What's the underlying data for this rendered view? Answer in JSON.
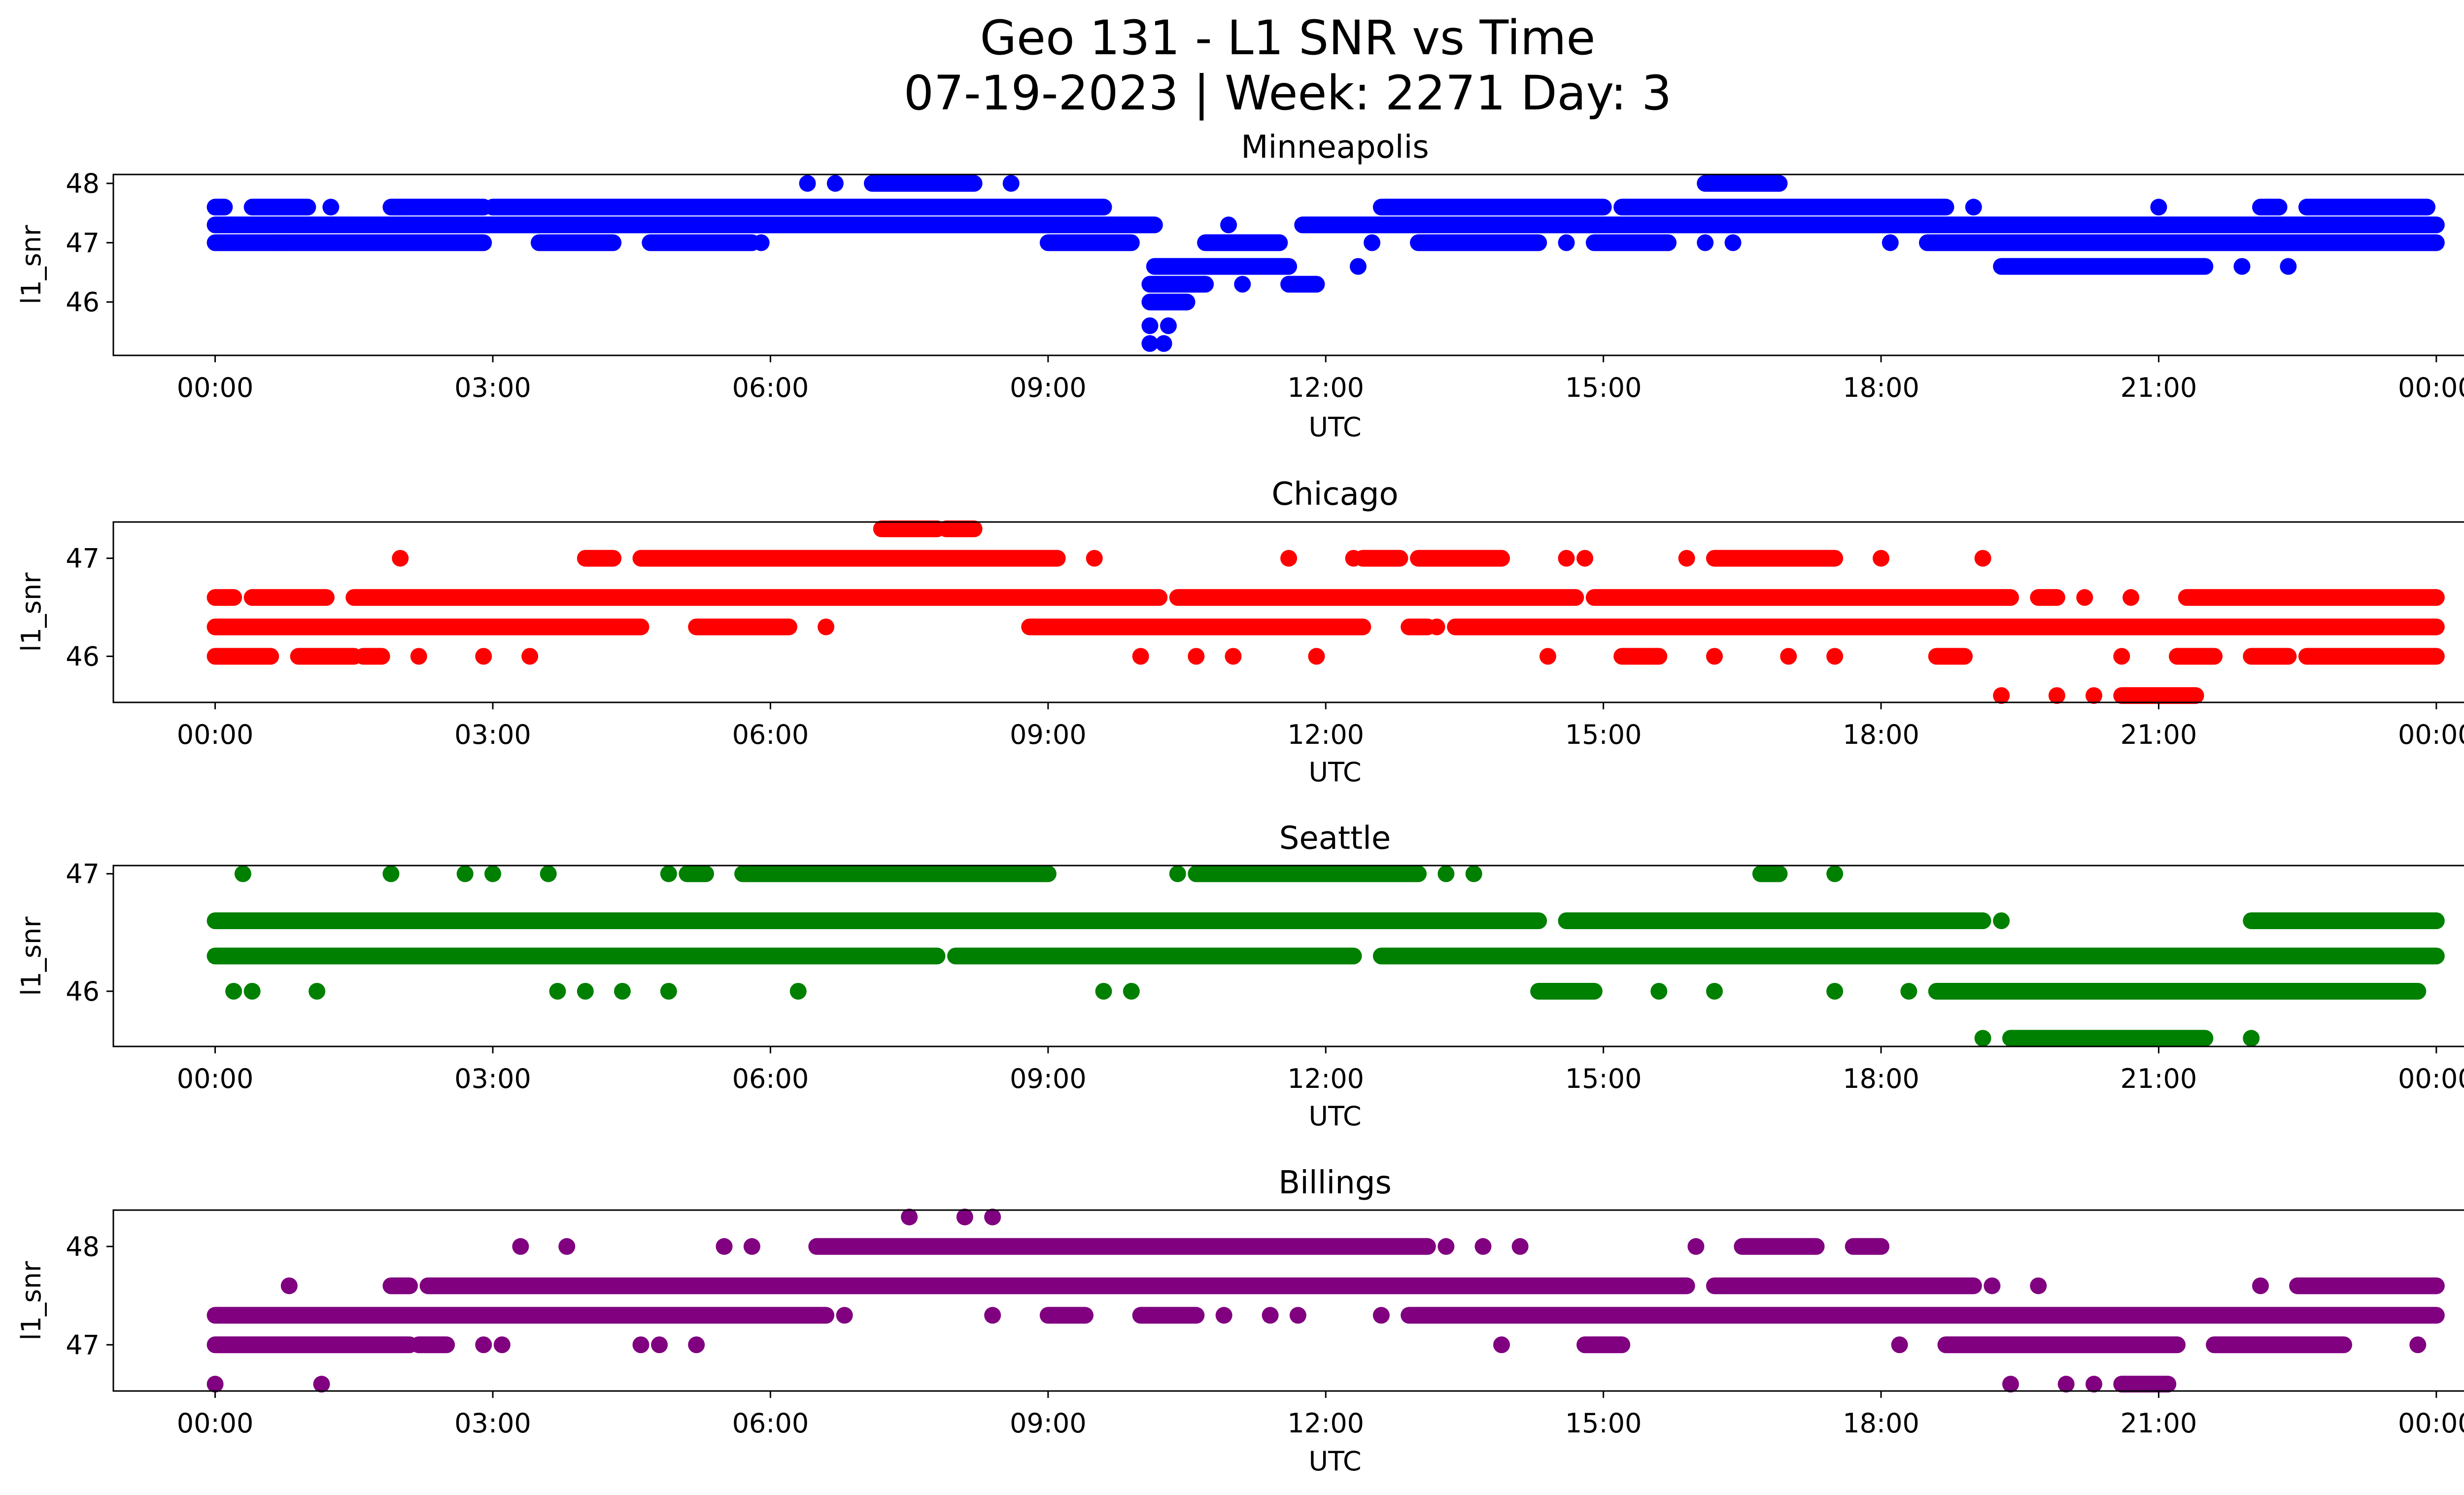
{
  "figure": {
    "title_line1": "Geo 131 - L1 SNR vs Time",
    "title_line2": "07-19-2023 | Week: 2271 Day: 3"
  },
  "chart_data": [
    {
      "type": "scatter",
      "title": "Minneapolis",
      "xlabel": "UTC",
      "ylabel": "l1_snr",
      "color": "#0000ff",
      "xlim_hours": [
        -1.1,
        25.3
      ],
      "ylim": [
        45.1,
        48.15
      ],
      "x_ticks": [
        "00:00",
        "03:00",
        "06:00",
        "09:00",
        "12:00",
        "15:00",
        "18:00",
        "21:00",
        "00:00"
      ],
      "y_ticks": [
        46,
        47,
        48
      ],
      "grid": false,
      "bands": [
        {
          "y": 47.3,
          "segments": [
            [
              0.0,
              10.15
            ],
            [
              11.75,
              24.0
            ]
          ]
        },
        {
          "y": 47.0,
          "segments": [
            [
              0.0,
              2.9
            ],
            [
              3.5,
              4.3
            ],
            [
              4.7,
              5.8
            ],
            [
              9.0,
              9.9
            ],
            [
              10.7,
              11.5
            ],
            [
              13.0,
              14.3
            ],
            [
              14.9,
              15.7
            ],
            [
              18.5,
              24.0
            ]
          ]
        },
        {
          "y": 47.6,
          "segments": [
            [
              0.0,
              0.1
            ],
            [
              0.4,
              1.0
            ],
            [
              1.9,
              2.9
            ],
            [
              3.0,
              9.6
            ],
            [
              12.6,
              15.0
            ],
            [
              15.2,
              18.7
            ],
            [
              22.1,
              22.3
            ],
            [
              22.6,
              23.9
            ]
          ]
        },
        {
          "y": 48.0,
          "segments": [
            [
              7.1,
              8.2
            ],
            [
              16.1,
              16.9
            ]
          ]
        },
        {
          "y": 46.6,
          "segments": [
            [
              10.15,
              11.6
            ],
            [
              19.3,
              21.5
            ]
          ]
        },
        {
          "y": 46.3,
          "segments": [
            [
              10.1,
              10.7
            ],
            [
              11.6,
              11.9
            ]
          ]
        },
        {
          "y": 46.0,
          "segments": [
            [
              10.1,
              10.5
            ]
          ]
        }
      ],
      "points": [
        {
          "x": 6.4,
          "y": 48.0
        },
        {
          "x": 6.7,
          "y": 48.0
        },
        {
          "x": 8.6,
          "y": 48.0
        },
        {
          "x": 1.25,
          "y": 47.6
        },
        {
          "x": 2.0,
          "y": 47.6
        },
        {
          "x": 19.0,
          "y": 47.6
        },
        {
          "x": 21.0,
          "y": 47.6
        },
        {
          "x": 10.95,
          "y": 47.3
        },
        {
          "x": 0.7,
          "y": 47.0
        },
        {
          "x": 5.9,
          "y": 47.0
        },
        {
          "x": 12.5,
          "y": 47.0
        },
        {
          "x": 14.6,
          "y": 47.0
        },
        {
          "x": 16.1,
          "y": 47.0
        },
        {
          "x": 16.4,
          "y": 47.0
        },
        {
          "x": 18.1,
          "y": 47.0
        },
        {
          "x": 12.35,
          "y": 46.6
        },
        {
          "x": 22.4,
          "y": 46.6
        },
        {
          "x": 21.9,
          "y": 46.6
        },
        {
          "x": 11.1,
          "y": 46.3
        },
        {
          "x": 10.1,
          "y": 45.6
        },
        {
          "x": 10.3,
          "y": 45.6
        },
        {
          "x": 10.1,
          "y": 45.3
        },
        {
          "x": 10.25,
          "y": 45.3
        }
      ]
    },
    {
      "type": "scatter",
      "title": "Chicago",
      "xlabel": "UTC",
      "ylabel": "l1_snr",
      "color": "#ff0000",
      "xlim_hours": [
        -1.1,
        25.3
      ],
      "ylim": [
        45.53,
        47.37
      ],
      "x_ticks": [
        "00:00",
        "03:00",
        "06:00",
        "09:00",
        "12:00",
        "15:00",
        "18:00",
        "21:00",
        "00:00"
      ],
      "y_ticks": [
        46,
        47
      ],
      "grid": false,
      "bands": [
        {
          "y": 46.6,
          "segments": [
            [
              0.0,
              0.2
            ],
            [
              0.4,
              1.2
            ],
            [
              1.5,
              10.2
            ],
            [
              10.4,
              14.7
            ],
            [
              14.9,
              19.4
            ],
            [
              19.7,
              19.9
            ],
            [
              21.3,
              24.0
            ]
          ]
        },
        {
          "y": 46.3,
          "segments": [
            [
              0.0,
              4.6
            ],
            [
              5.2,
              6.2
            ],
            [
              8.8,
              12.4
            ],
            [
              12.9,
              13.1
            ],
            [
              13.4,
              24.0
            ]
          ]
        },
        {
          "y": 46.0,
          "segments": [
            [
              0.0,
              0.6
            ],
            [
              0.9,
              1.5
            ],
            [
              1.6,
              1.8
            ],
            [
              15.2,
              15.6
            ],
            [
              18.6,
              18.9
            ],
            [
              21.2,
              21.6
            ],
            [
              22.0,
              22.4
            ],
            [
              22.6,
              24.0
            ]
          ]
        },
        {
          "y": 47.0,
          "segments": [
            [
              4.0,
              4.3
            ],
            [
              4.6,
              9.1
            ],
            [
              12.4,
              12.8
            ],
            [
              13.0,
              13.9
            ],
            [
              16.2,
              17.5
            ]
          ]
        },
        {
          "y": 47.3,
          "segments": [
            [
              7.2,
              7.8
            ],
            [
              7.9,
              8.2
            ]
          ]
        },
        {
          "y": 45.6,
          "segments": [
            [
              20.6,
              21.4
            ]
          ]
        }
      ],
      "points": [
        {
          "x": 2.0,
          "y": 47.0
        },
        {
          "x": 9.5,
          "y": 47.0
        },
        {
          "x": 11.6,
          "y": 47.0
        },
        {
          "x": 12.3,
          "y": 47.0
        },
        {
          "x": 14.6,
          "y": 47.0
        },
        {
          "x": 14.8,
          "y": 47.0
        },
        {
          "x": 15.9,
          "y": 47.0
        },
        {
          "x": 18.0,
          "y": 47.0
        },
        {
          "x": 19.1,
          "y": 47.0
        },
        {
          "x": 6.6,
          "y": 46.3
        },
        {
          "x": 13.2,
          "y": 46.3
        },
        {
          "x": 2.2,
          "y": 46.0
        },
        {
          "x": 2.9,
          "y": 46.0
        },
        {
          "x": 3.4,
          "y": 46.0
        },
        {
          "x": 10.0,
          "y": 46.0
        },
        {
          "x": 10.6,
          "y": 46.0
        },
        {
          "x": 11.0,
          "y": 46.0
        },
        {
          "x": 11.9,
          "y": 46.0
        },
        {
          "x": 14.4,
          "y": 46.0
        },
        {
          "x": 16.2,
          "y": 46.0
        },
        {
          "x": 17.0,
          "y": 46.0
        },
        {
          "x": 17.5,
          "y": 46.0
        },
        {
          "x": 20.6,
          "y": 46.0
        },
        {
          "x": 20.2,
          "y": 46.6
        },
        {
          "x": 20.7,
          "y": 46.6
        },
        {
          "x": 19.3,
          "y": 45.6
        },
        {
          "x": 19.9,
          "y": 45.6
        },
        {
          "x": 20.3,
          "y": 45.6
        }
      ]
    },
    {
      "type": "scatter",
      "title": "Seattle",
      "xlabel": "UTC",
      "ylabel": "l1_snr",
      "color": "#008000",
      "xlim_hours": [
        -1.1,
        25.3
      ],
      "ylim": [
        45.53,
        47.07
      ],
      "x_ticks": [
        "00:00",
        "03:00",
        "06:00",
        "09:00",
        "12:00",
        "15:00",
        "18:00",
        "21:00",
        "00:00"
      ],
      "y_ticks": [
        46,
        47
      ],
      "grid": false,
      "bands": [
        {
          "y": 46.6,
          "segments": [
            [
              0.0,
              14.3
            ],
            [
              14.6,
              19.1
            ],
            [
              22.0,
              24.0
            ]
          ]
        },
        {
          "y": 46.3,
          "segments": [
            [
              0.0,
              7.8
            ],
            [
              8.0,
              12.3
            ],
            [
              12.6,
              24.0
            ]
          ]
        },
        {
          "y": 46.0,
          "segments": [
            [
              14.3,
              14.9
            ],
            [
              18.6,
              23.8
            ]
          ]
        },
        {
          "y": 47.0,
          "segments": [
            [
              5.1,
              5.3
            ],
            [
              5.7,
              9.0
            ],
            [
              10.6,
              13.0
            ],
            [
              16.7,
              16.9
            ]
          ]
        },
        {
          "y": 45.6,
          "segments": [
            [
              19.4,
              21.5
            ]
          ]
        }
      ],
      "points": [
        {
          "x": 0.3,
          "y": 47.0
        },
        {
          "x": 1.9,
          "y": 47.0
        },
        {
          "x": 2.7,
          "y": 47.0
        },
        {
          "x": 3.0,
          "y": 47.0
        },
        {
          "x": 3.6,
          "y": 47.0
        },
        {
          "x": 4.9,
          "y": 47.0
        },
        {
          "x": 10.4,
          "y": 47.0
        },
        {
          "x": 13.3,
          "y": 47.0
        },
        {
          "x": 13.6,
          "y": 47.0
        },
        {
          "x": 17.5,
          "y": 47.0
        },
        {
          "x": 14.7,
          "y": 46.6
        },
        {
          "x": 19.3,
          "y": 46.6
        },
        {
          "x": 0.2,
          "y": 46.0
        },
        {
          "x": 0.4,
          "y": 46.0
        },
        {
          "x": 1.1,
          "y": 46.0
        },
        {
          "x": 3.7,
          "y": 46.0
        },
        {
          "x": 4.0,
          "y": 46.0
        },
        {
          "x": 4.4,
          "y": 46.0
        },
        {
          "x": 4.9,
          "y": 46.0
        },
        {
          "x": 6.3,
          "y": 46.0
        },
        {
          "x": 9.6,
          "y": 46.0
        },
        {
          "x": 9.9,
          "y": 46.0
        },
        {
          "x": 15.6,
          "y": 46.0
        },
        {
          "x": 16.2,
          "y": 46.0
        },
        {
          "x": 17.5,
          "y": 46.0
        },
        {
          "x": 18.3,
          "y": 46.0
        },
        {
          "x": 19.1,
          "y": 45.6
        },
        {
          "x": 22.0,
          "y": 45.6
        }
      ]
    },
    {
      "type": "scatter",
      "title": "Billings",
      "xlabel": "UTC",
      "ylabel": "l1_snr",
      "color": "#800080",
      "xlim_hours": [
        -1.1,
        25.3
      ],
      "ylim": [
        46.53,
        48.37
      ],
      "x_ticks": [
        "00:00",
        "03:00",
        "06:00",
        "09:00",
        "12:00",
        "15:00",
        "18:00",
        "21:00",
        "00:00"
      ],
      "y_ticks": [
        47,
        48
      ],
      "grid": false,
      "bands": [
        {
          "y": 47.6,
          "segments": [
            [
              1.9,
              2.1
            ],
            [
              2.3,
              15.9
            ],
            [
              16.2,
              19.0
            ],
            [
              22.5,
              24.0
            ]
          ]
        },
        {
          "y": 47.3,
          "segments": [
            [
              0.0,
              6.6
            ],
            [
              9.0,
              9.4
            ],
            [
              10.0,
              10.6
            ],
            [
              12.9,
              24.0
            ]
          ]
        },
        {
          "y": 47.0,
          "segments": [
            [
              0.0,
              2.1
            ],
            [
              2.2,
              2.5
            ],
            [
              14.8,
              15.2
            ],
            [
              18.7,
              21.2
            ],
            [
              21.6,
              23.0
            ]
          ]
        },
        {
          "y": 48.0,
          "segments": [
            [
              6.5,
              13.1
            ],
            [
              16.5,
              17.3
            ],
            [
              17.7,
              18.0
            ]
          ]
        },
        {
          "y": 46.6,
          "segments": [
            [
              20.6,
              21.1
            ]
          ]
        }
      ],
      "points": [
        {
          "x": 0.8,
          "y": 47.6
        },
        {
          "x": 19.2,
          "y": 47.6
        },
        {
          "x": 19.7,
          "y": 47.6
        },
        {
          "x": 22.1,
          "y": 47.6
        },
        {
          "x": 8.4,
          "y": 47.3
        },
        {
          "x": 10.9,
          "y": 47.3
        },
        {
          "x": 11.4,
          "y": 47.3
        },
        {
          "x": 11.7,
          "y": 47.3
        },
        {
          "x": 12.6,
          "y": 47.3
        },
        {
          "x": 6.8,
          "y": 47.3
        },
        {
          "x": 2.9,
          "y": 47.0
        },
        {
          "x": 3.1,
          "y": 47.0
        },
        {
          "x": 4.6,
          "y": 47.0
        },
        {
          "x": 4.8,
          "y": 47.0
        },
        {
          "x": 5.2,
          "y": 47.0
        },
        {
          "x": 13.9,
          "y": 47.0
        },
        {
          "x": 18.2,
          "y": 47.0
        },
        {
          "x": 23.8,
          "y": 47.0
        },
        {
          "x": 3.3,
          "y": 48.0
        },
        {
          "x": 3.8,
          "y": 48.0
        },
        {
          "x": 5.5,
          "y": 48.0
        },
        {
          "x": 5.8,
          "y": 48.0
        },
        {
          "x": 13.3,
          "y": 48.0
        },
        {
          "x": 13.7,
          "y": 48.0
        },
        {
          "x": 14.1,
          "y": 48.0
        },
        {
          "x": 16.0,
          "y": 48.0
        },
        {
          "x": 7.5,
          "y": 48.3
        },
        {
          "x": 8.1,
          "y": 48.3
        },
        {
          "x": 8.4,
          "y": 48.3
        },
        {
          "x": 0.0,
          "y": 46.6
        },
        {
          "x": 1.15,
          "y": 46.6
        },
        {
          "x": 19.4,
          "y": 46.6
        },
        {
          "x": 20.0,
          "y": 46.6
        },
        {
          "x": 20.3,
          "y": 46.6
        }
      ]
    }
  ]
}
